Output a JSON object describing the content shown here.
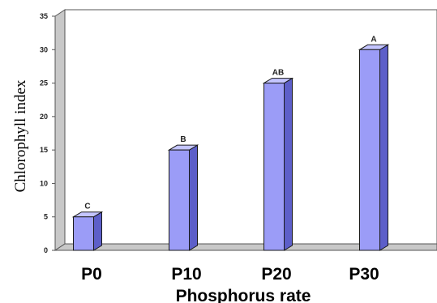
{
  "chart_data": {
    "type": "bar",
    "categories": [
      "P0",
      "P10",
      "P20",
      "P30"
    ],
    "values": [
      5,
      15,
      25,
      30
    ],
    "data_labels": [
      "C",
      "B",
      "AB",
      "A"
    ],
    "xlabel": "Phosphorus rate",
    "ylabel": "Chlorophyll index",
    "ylim": [
      0,
      35
    ],
    "yticks": [
      0,
      5,
      10,
      15,
      20,
      25,
      30,
      35
    ],
    "grid": false,
    "legend": "none",
    "colors": {
      "bar_front": "#9b9cf7",
      "bar_side": "#5d5fc9",
      "bar_top": "#c4c5ff",
      "bar_edge": "#1a1a1a"
    }
  }
}
